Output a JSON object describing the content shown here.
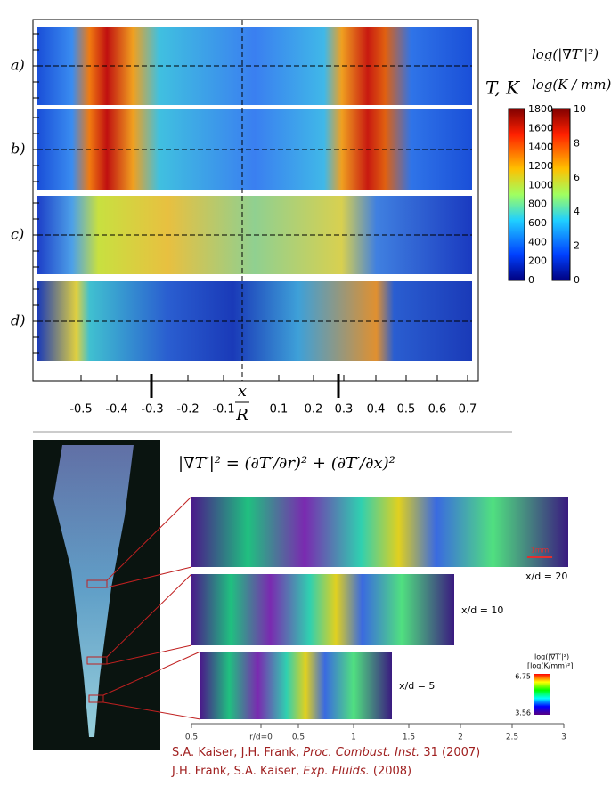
{
  "top_figure": {
    "panel_labels": [
      "a)",
      "b)",
      "c)",
      "d)"
    ],
    "x_ticks": [
      "-0.5",
      "-0.4",
      "-0.3",
      "-0.2",
      "-0.1",
      "0.1",
      "0.2",
      "0.3",
      "0.4",
      "0.5",
      "0.6",
      "0.7"
    ],
    "x_label_numerator": "x",
    "x_label_denominator": "R",
    "temperature_colorbar": {
      "title": "T, K",
      "ticks": [
        "1800",
        "1600",
        "1400",
        "1200",
        "1000",
        "800",
        "600",
        "400",
        "200",
        "0"
      ]
    },
    "gradient_colorbar": {
      "title_line1": "log(|∇T′|²)",
      "title_line2": "log(K / mm)",
      "ticks": [
        "10",
        "8",
        "6",
        "4",
        "2",
        "0"
      ]
    }
  },
  "equation": "|∇T′|² = (∂T′/∂r)² + (∂T′/∂x)²",
  "bottom_figure": {
    "scale_bar": "1mm",
    "station_labels": [
      "x/d = 20",
      "x/d = 10",
      "x/d = 5"
    ],
    "colorbar": {
      "title_line1": "log(|∇T′|²)",
      "title_line2": "[log(K/mm)²]",
      "max": "6.75",
      "min": "3.56"
    },
    "axis_ticks": [
      "0.5",
      "r/d=0",
      "0.5",
      "1",
      "1.5",
      "2",
      "2.5",
      "3"
    ]
  },
  "citations": [
    {
      "authors": "S.A. Kaiser, J.H. Frank, ",
      "journal": "Proc. Combust. Inst.",
      "details": " 31 (2007)"
    },
    {
      "authors": "J.H. Frank, S.A. Kaiser, ",
      "journal": "Exp. Fluids.",
      "details": " (2008)"
    }
  ]
}
